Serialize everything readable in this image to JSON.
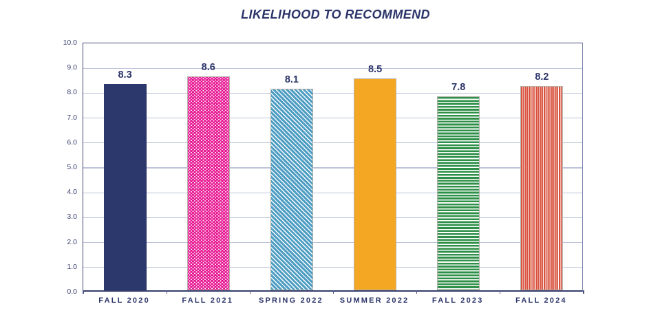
{
  "title": "LIKELIHOOD TO RECOMMEND",
  "chart_data": {
    "type": "bar",
    "title": "LIKELIHOOD TO RECOMMEND",
    "categories": [
      "FALL 2020",
      "FALL 2021",
      "SPRING 2022",
      "SUMMER 2022",
      "FALL 2023",
      "FALL 2024"
    ],
    "values": [
      8.3,
      8.6,
      8.1,
      8.5,
      7.8,
      8.2
    ],
    "value_labels": [
      "8.3",
      "8.6",
      "8.1",
      "8.5",
      "7.8",
      "8.2"
    ],
    "xlabel": "",
    "ylabel": "",
    "ylim": [
      0,
      10
    ],
    "ytick_labels": [
      "0.0",
      "1.0",
      "2.0",
      "3.0",
      "4.0",
      "5.0",
      "6.0",
      "7.0",
      "8.0",
      "9.0",
      "10.0"
    ],
    "grid": true,
    "legend_position": "none",
    "bar_styles": [
      {
        "pattern": "solid",
        "color": "#2c386b",
        "accent": "#ffffff",
        "accent2": "#ffffff",
        "outlined": false
      },
      {
        "pattern": "dots",
        "color": "#e5128f",
        "accent": "#ffffff",
        "accent2": "#ffd9ee",
        "outlined": true
      },
      {
        "pattern": "diagonal-stripes",
        "color": "#4e9dc3",
        "accent": "#ffffff",
        "accent2": "#ffffff",
        "outlined": true
      },
      {
        "pattern": "solid",
        "color": "#f4a723",
        "accent": "#ffffff",
        "accent2": "#ffffff",
        "outlined": true
      },
      {
        "pattern": "horizontal-stripes",
        "color": "#2e9048",
        "accent": "#ffffff",
        "accent2": "#ffffff",
        "outlined": true
      },
      {
        "pattern": "vertical-stripes",
        "color": "#d9523f",
        "accent": "#ffffff",
        "accent2": "#f3baaf",
        "outlined": true
      }
    ],
    "colors": {
      "title_text": "#2b3469",
      "label_text": "#2b3469",
      "tick_text": "#39426f",
      "gridline": "#bcc3da",
      "axis_border": "#3a436f",
      "bar_outline": "#b6b1ac"
    }
  }
}
